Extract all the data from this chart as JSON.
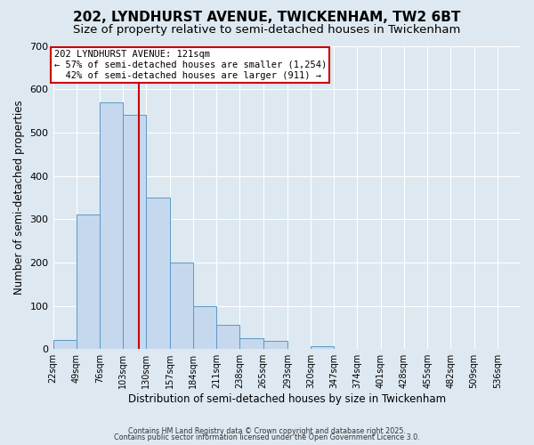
{
  "title1": "202, LYNDHURST AVENUE, TWICKENHAM, TW2 6BT",
  "title2": "Size of property relative to semi-detached houses in Twickenham",
  "xlabel": "Distribution of semi-detached houses by size in Twickenham",
  "ylabel": "Number of semi-detached properties",
  "bin_edges": [
    22,
    49,
    76,
    103,
    130,
    157,
    184,
    211,
    238,
    265,
    293,
    320,
    347,
    374,
    401,
    428,
    455,
    482,
    509,
    536,
    563
  ],
  "bar_heights": [
    20,
    310,
    570,
    540,
    350,
    200,
    100,
    55,
    25,
    18,
    0,
    7,
    0,
    0,
    0,
    0,
    0,
    0,
    0,
    0
  ],
  "bar_color": "#c5d8ed",
  "bar_edgecolor": "#5a9ac8",
  "property_size": 121,
  "red_line_color": "#cc0000",
  "annotation_line1": "202 LYNDHURST AVENUE: 121sqm",
  "annotation_line2": "← 57% of semi-detached houses are smaller (1,254)",
  "annotation_line3": "  42% of semi-detached houses are larger (911) →",
  "annotation_box_color": "#ffffff",
  "annotation_box_edgecolor": "#cc0000",
  "ylim": [
    0,
    700
  ],
  "xlim": [
    22,
    563
  ],
  "background_color": "#dde8f0",
  "plot_bg_color": "#dde8f0",
  "grid_color": "#ffffff",
  "footnote1": "Contains HM Land Registry data © Crown copyright and database right 2025.",
  "footnote2": "Contains public sector information licensed under the Open Government Licence 3.0.",
  "title1_fontsize": 11,
  "title2_fontsize": 9.5,
  "tick_label_fontsize": 7,
  "ytick_fontsize": 8,
  "ylabel_fontsize": 8.5,
  "xlabel_fontsize": 8.5,
  "annot_fontsize": 7.5
}
